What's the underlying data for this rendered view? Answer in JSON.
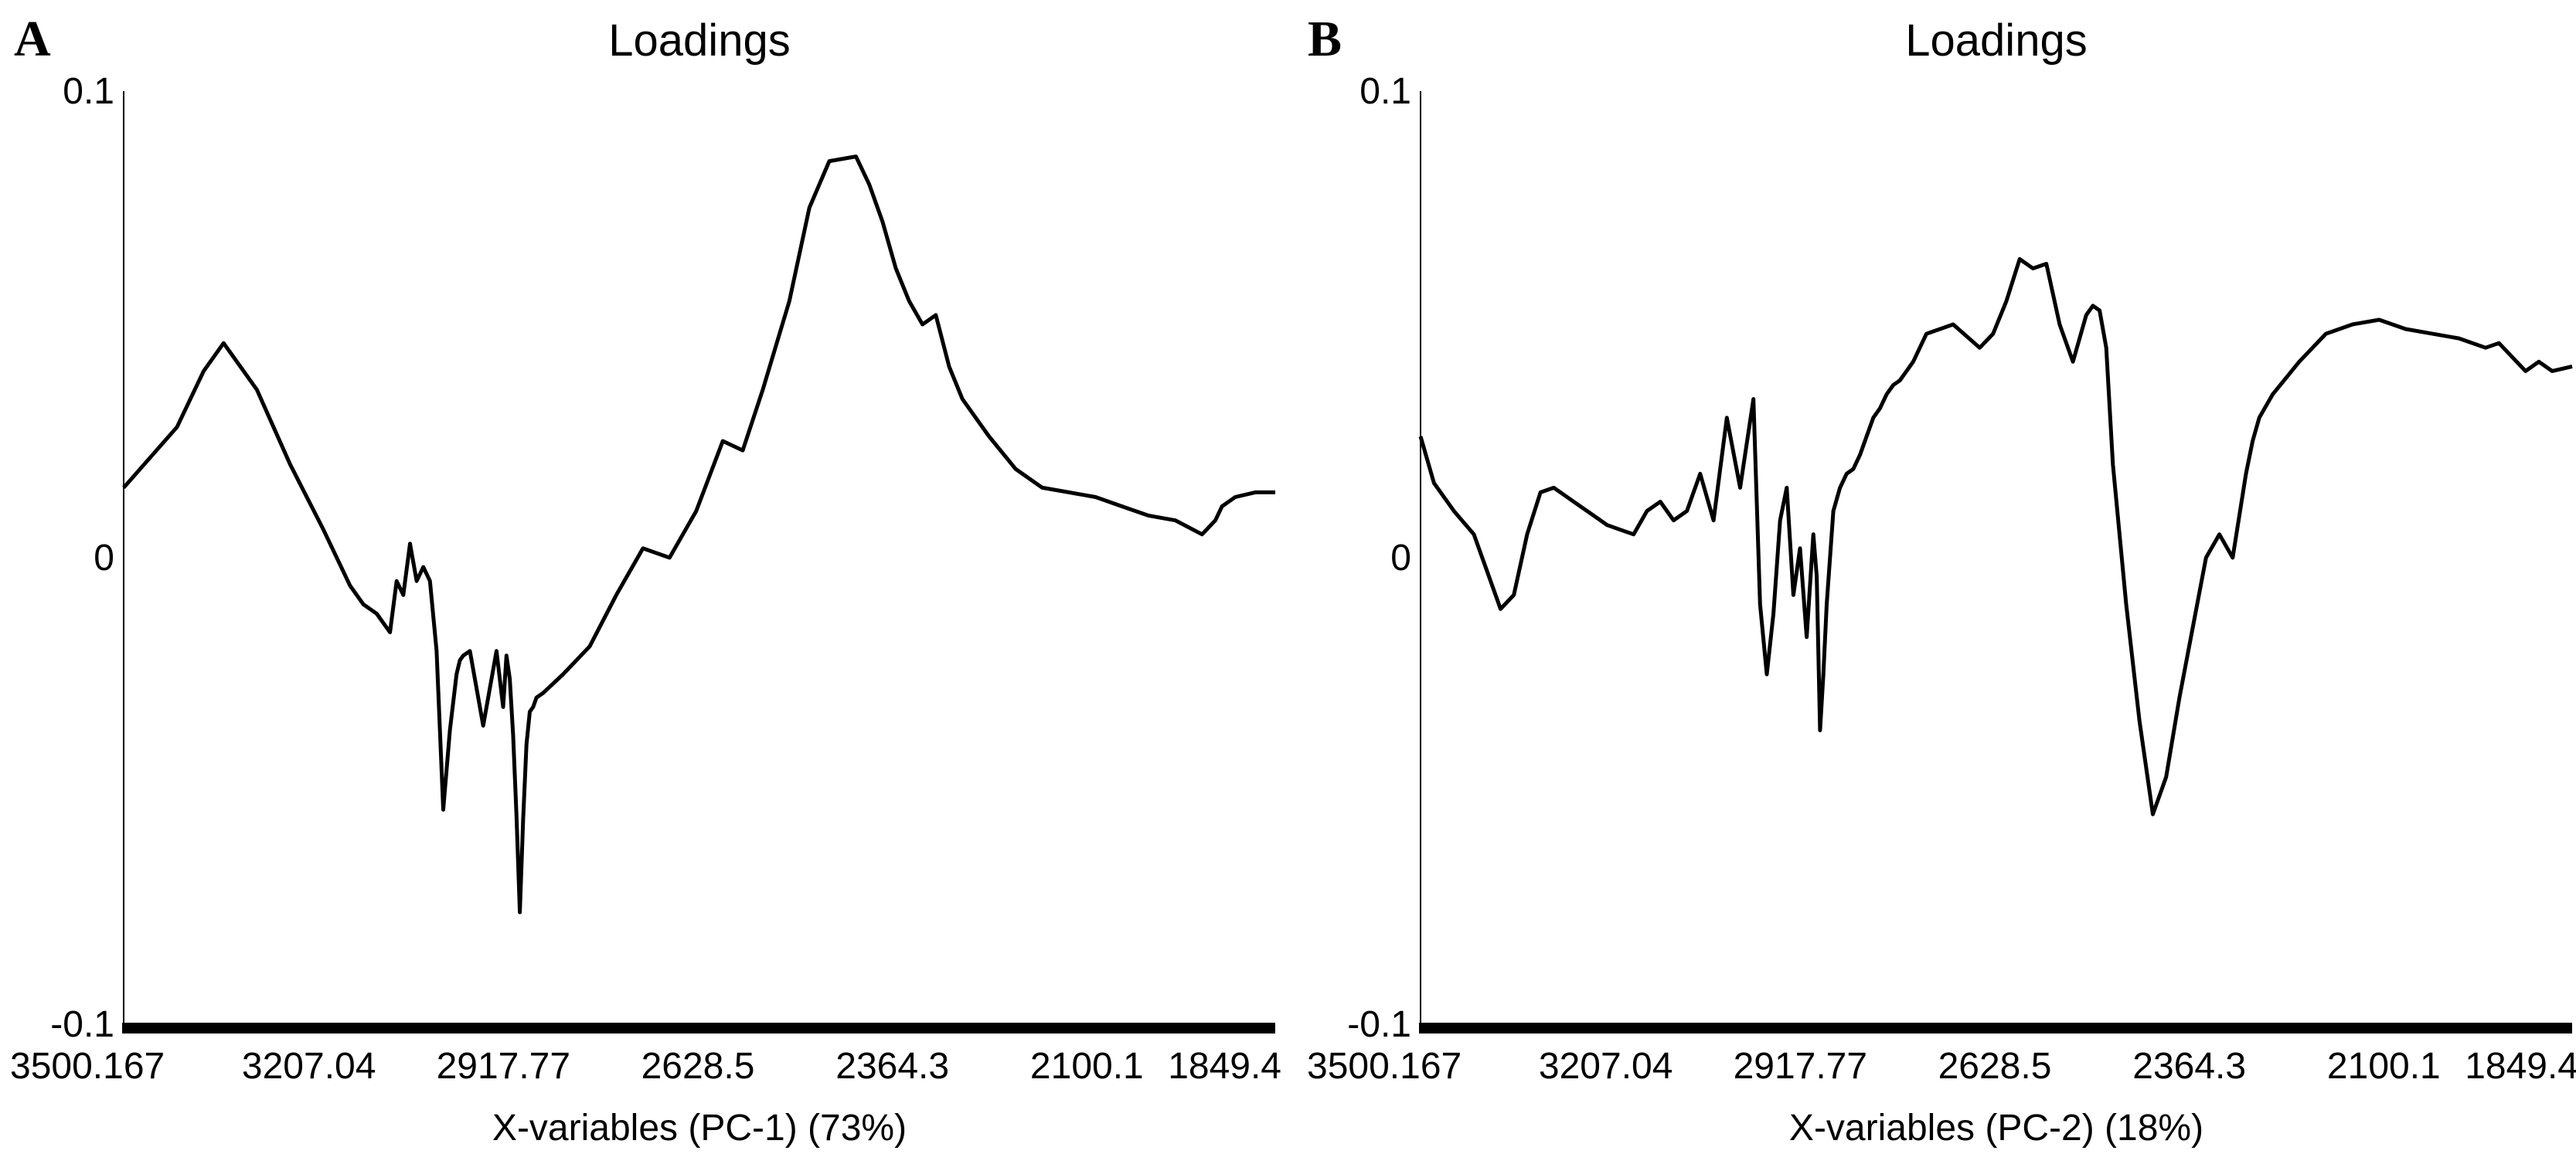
{
  "chart_data": [
    {
      "type": "line",
      "panel_label": "A",
      "title": "Loadings",
      "xlabel": "X-variables (PC-1) (73%)",
      "ylabel": "",
      "x_reversed": true,
      "xlim": [
        3500.167,
        1770
      ],
      "ylim": [
        -0.1,
        0.1
      ],
      "x_ticks": [
        "3500.167",
        "3207.04",
        "2917.77",
        "2628.5",
        "2364.3",
        "2100.1",
        "1849.4"
      ],
      "y_ticks": [
        "0.1",
        "0",
        "-0.1"
      ],
      "grid": false,
      "legend": "none",
      "series": [
        {
          "x": [
            3500.167,
            3420,
            3380,
            3350,
            3300,
            3250,
            3200,
            3160,
            3140,
            3120,
            3110,
            3100,
            3090,
            3080,
            3070,
            3060,
            3050,
            3040,
            3030,
            3020,
            3010,
            3000,
            2995,
            2990,
            2980,
            2960,
            2940,
            2930,
            2925,
            2920,
            2915,
            2910,
            2905,
            2900,
            2895,
            2890,
            2885,
            2880,
            2870,
            2840,
            2800,
            2760,
            2720,
            2680,
            2640,
            2600,
            2570,
            2540,
            2500,
            2470,
            2440,
            2400,
            2380,
            2360,
            2340,
            2320,
            2300,
            2280,
            2260,
            2240,
            2200,
            2160,
            2120,
            2080,
            2040,
            2000,
            1960,
            1920,
            1880,
            1860,
            1850,
            1840,
            1830,
            1800,
            1770
          ],
          "y": [
            0.015,
            0.028,
            0.04,
            0.046,
            0.036,
            0.02,
            0.006,
            -0.006,
            -0.01,
            -0.012,
            -0.014,
            -0.016,
            -0.005,
            -0.008,
            0.003,
            -0.005,
            -0.002,
            -0.005,
            -0.02,
            -0.054,
            -0.037,
            -0.025,
            -0.022,
            -0.021,
            -0.02,
            -0.036,
            -0.02,
            -0.032,
            -0.021,
            -0.026,
            -0.038,
            -0.055,
            -0.076,
            -0.056,
            -0.04,
            -0.033,
            -0.032,
            -0.03,
            -0.029,
            -0.025,
            -0.019,
            -0.008,
            0.002,
            0.0,
            0.01,
            0.025,
            0.023,
            0.036,
            0.055,
            0.075,
            0.085,
            0.086,
            0.08,
            0.072,
            0.062,
            0.055,
            0.05,
            0.052,
            0.041,
            0.034,
            0.026,
            0.019,
            0.015,
            0.014,
            0.013,
            0.011,
            0.009,
            0.008,
            0.005,
            0.008,
            0.011,
            0.012,
            0.013,
            0.014,
            0.014
          ]
        }
      ]
    },
    {
      "type": "line",
      "panel_label": "B",
      "title": "Loadings",
      "xlabel": "X-variables (PC-2) (18%)",
      "ylabel": "",
      "x_reversed": true,
      "xlim": [
        3500.167,
        1770
      ],
      "ylim": [
        -0.1,
        0.1
      ],
      "x_ticks": [
        "3500.167",
        "3207.04",
        "2917.77",
        "2628.5",
        "2364.3",
        "2100.1",
        "1849.4"
      ],
      "y_ticks": [
        "0.1",
        "0",
        "-0.1"
      ],
      "grid": false,
      "legend": "none",
      "series": [
        {
          "x": [
            3500.167,
            3480,
            3450,
            3420,
            3400,
            3380,
            3360,
            3340,
            3320,
            3300,
            3280,
            3260,
            3240,
            3220,
            3200,
            3180,
            3160,
            3140,
            3120,
            3100,
            3080,
            3060,
            3040,
            3020,
            3000,
            2990,
            2980,
            2970,
            2960,
            2950,
            2940,
            2930,
            2920,
            2910,
            2905,
            2900,
            2895,
            2890,
            2880,
            2870,
            2860,
            2850,
            2840,
            2830,
            2820,
            2810,
            2800,
            2790,
            2780,
            2770,
            2760,
            2740,
            2700,
            2660,
            2640,
            2620,
            2600,
            2580,
            2560,
            2540,
            2520,
            2500,
            2490,
            2480,
            2470,
            2460,
            2440,
            2420,
            2400,
            2380,
            2360,
            2340,
            2320,
            2300,
            2280,
            2260,
            2250,
            2240,
            2220,
            2180,
            2140,
            2100,
            2060,
            2020,
            1980,
            1940,
            1900,
            1880,
            1860,
            1840,
            1820,
            1800,
            1770
          ],
          "y": [
            0.026,
            0.016,
            0.01,
            0.005,
            -0.003,
            -0.011,
            -0.008,
            0.005,
            0.014,
            0.015,
            0.013,
            0.011,
            0.009,
            0.007,
            0.006,
            0.005,
            0.01,
            0.012,
            0.008,
            0.01,
            0.018,
            0.008,
            0.03,
            0.015,
            0.034,
            -0.01,
            -0.025,
            -0.012,
            0.008,
            0.015,
            -0.008,
            0.002,
            -0.017,
            0.005,
            -0.004,
            -0.037,
            -0.025,
            -0.01,
            0.01,
            0.015,
            0.018,
            0.019,
            0.022,
            0.026,
            0.03,
            0.032,
            0.035,
            0.037,
            0.038,
            0.04,
            0.042,
            0.048,
            0.05,
            0.045,
            0.048,
            0.055,
            0.064,
            0.062,
            0.063,
            0.05,
            0.042,
            0.052,
            0.054,
            0.053,
            0.045,
            0.02,
            -0.01,
            -0.035,
            -0.055,
            -0.047,
            -0.03,
            -0.015,
            0.0,
            0.005,
            0.0,
            0.018,
            0.025,
            0.03,
            0.035,
            0.042,
            0.048,
            0.05,
            0.051,
            0.049,
            0.048,
            0.047,
            0.045,
            0.046,
            0.043,
            0.04,
            0.042,
            0.04,
            0.041
          ]
        }
      ]
    }
  ]
}
